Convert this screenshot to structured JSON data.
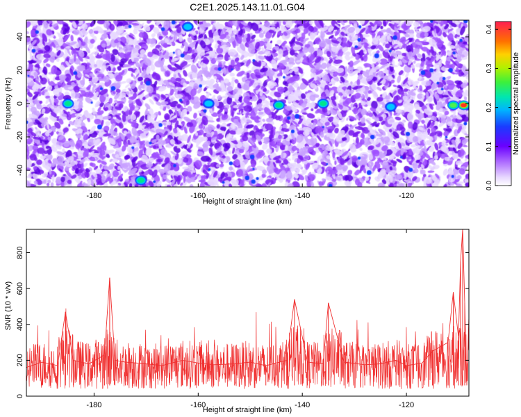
{
  "title": "C2E1.2025.143.11.01.G04",
  "colors": {
    "snr_line": "#f03030",
    "scatter_palette": [
      "#e8d8ff",
      "#c8a0ff",
      "#a050ff",
      "#7a1cf0",
      "#5a00e0",
      "#1a40ff",
      "#00c8ff",
      "#00e68c",
      "#50f050",
      "#ffd000",
      "#ff3020"
    ]
  },
  "chart_data": [
    {
      "type": "heatmap",
      "xlabel": "Height of straight line (km)",
      "ylabel": "Frequency (Hz)",
      "xlim": [
        -193,
        -108
      ],
      "ylim": [
        -50,
        50
      ],
      "xticks": [
        "-180",
        "-160",
        "-140",
        "-120"
      ],
      "xtick_values": [
        -180,
        -160,
        -140,
        -120
      ],
      "yticks": [
        "-40",
        "-20",
        "0",
        "20",
        "40"
      ],
      "ytick_values": [
        -40,
        -20,
        0,
        20,
        40
      ],
      "colorbar": {
        "label": "Normalized spectral amplitude",
        "range": [
          0.0,
          0.42
        ],
        "ticks": [
          "0.0",
          "0.1",
          "0.2",
          "0.3",
          "0.4"
        ],
        "tick_values": [
          0.0,
          0.1,
          0.2,
          0.3,
          0.4
        ]
      },
      "hotspots": [
        {
          "x": -109,
          "y": -1,
          "value": 0.4
        },
        {
          "x": -111,
          "y": -1,
          "value": 0.22
        },
        {
          "x": -144.5,
          "y": -1,
          "value": 0.14
        },
        {
          "x": -136,
          "y": 0,
          "value": 0.13
        },
        {
          "x": -185,
          "y": 0,
          "value": 0.14
        },
        {
          "x": -171,
          "y": -46,
          "value": 0.14
        },
        {
          "x": -162,
          "y": 46,
          "value": 0.12
        },
        {
          "x": -123,
          "y": -2,
          "value": 0.11
        },
        {
          "x": -158,
          "y": 0,
          "value": 0.1
        }
      ]
    },
    {
      "type": "line",
      "xlabel": "Height of straight line (km)",
      "ylabel": "SNR (10 * v/v)",
      "xlim": [
        -193,
        -108
      ],
      "ylim": [
        0,
        930
      ],
      "xticks": [
        "-180",
        "-160",
        "-140",
        "-120"
      ],
      "xtick_values": [
        -180,
        -160,
        -140,
        -120
      ],
      "yticks": [
        "0",
        "200",
        "400",
        "600",
        "800"
      ],
      "ytick_values": [
        0,
        200,
        400,
        600,
        800
      ],
      "series": [
        {
          "x": [
            -193,
            -190,
            -187,
            -185.5,
            -184,
            -181,
            -178,
            -177,
            -176,
            -174,
            -170,
            -167,
            -163,
            -160,
            -157,
            -153,
            -150,
            -147,
            -143,
            -141.5,
            -139,
            -136,
            -135,
            -132,
            -128,
            -125,
            -122,
            -120,
            -117,
            -115,
            -112,
            -111,
            -110,
            -109.6,
            -109.2,
            -108.8,
            -108.4,
            -108
          ],
          "values": [
            160,
            190,
            170,
            470,
            200,
            180,
            230,
            660,
            200,
            190,
            180,
            170,
            200,
            185,
            175,
            180,
            190,
            170,
            200,
            540,
            190,
            180,
            520,
            190,
            175,
            180,
            200,
            170,
            185,
            250,
            300,
            580,
            330,
            750,
            930,
            520,
            60,
            440
          ]
        }
      ]
    }
  ]
}
